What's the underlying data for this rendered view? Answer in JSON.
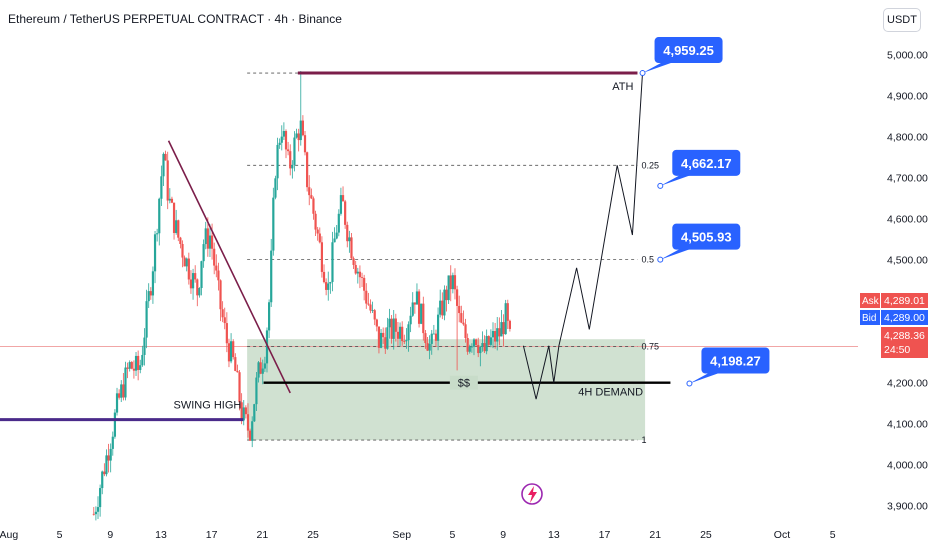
{
  "header": {
    "title": "Ethereum / TetherUS PERPETUAL CONTRACT · 4h · Binance",
    "currency": "USDT"
  },
  "colors": {
    "up": "#26a69a",
    "down": "#ef5350",
    "accent": "#2962ff",
    "ath_line": "#7b1e4a",
    "swing_line": "#4a2a8a",
    "demand_zone": "#c8dcc9"
  },
  "chart_data": {
    "type": "candlestick",
    "title": "",
    "y_ticks": [
      "5,000.00",
      "4,900.00",
      "4,800.00",
      "4,700.00",
      "4,600.00",
      "4,500.00",
      "4,400.00",
      "4,300.00",
      "4,200.00",
      "4,100.00",
      "4,000.00",
      "3,900.00"
    ],
    "y_tick_values": [
      5000,
      4900,
      4800,
      4700,
      4600,
      4500,
      4400,
      4300,
      4200,
      4100,
      4000,
      3900
    ],
    "ylim": [
      3870,
      5060
    ],
    "x_ticks": [
      {
        "label": "Aug",
        "day": 1
      },
      {
        "label": "5",
        "day": 5
      },
      {
        "label": "9",
        "day": 9
      },
      {
        "label": "13",
        "day": 13
      },
      {
        "label": "17",
        "day": 17
      },
      {
        "label": "21",
        "day": 21
      },
      {
        "label": "25",
        "day": 25
      },
      {
        "label": "Sep",
        "day": 32
      },
      {
        "label": "5",
        "day": 36
      },
      {
        "label": "9",
        "day": 40
      },
      {
        "label": "13",
        "day": 44
      },
      {
        "label": "17",
        "day": 48
      },
      {
        "label": "21",
        "day": 52
      },
      {
        "label": "25",
        "day": 56
      },
      {
        "label": "Oct",
        "day": 62
      },
      {
        "label": "5",
        "day": 66
      }
    ],
    "day_range": [
      0.3,
      68
    ],
    "candle_path": [
      [
        7.7,
        3880
      ],
      [
        9.0,
        4060
      ],
      [
        9.6,
        4150
      ],
      [
        10.5,
        4240
      ],
      [
        11.3,
        4230
      ],
      [
        12.3,
        4470
      ],
      [
        13.2,
        4760
      ],
      [
        13.6,
        4650
      ],
      [
        14.3,
        4560
      ],
      [
        15.3,
        4470
      ],
      [
        15.9,
        4420
      ],
      [
        16.3,
        4540
      ],
      [
        16.9,
        4560
      ],
      [
        17.6,
        4400
      ],
      [
        18.2,
        4300
      ],
      [
        18.8,
        4240
      ],
      [
        19.4,
        4120
      ],
      [
        20.0,
        4080
      ],
      [
        20.6,
        4210
      ],
      [
        21.2,
        4280
      ],
      [
        21.6,
        4420
      ],
      [
        22.0,
        4720
      ],
      [
        22.5,
        4830
      ],
      [
        23.1,
        4720
      ],
      [
        23.6,
        4790
      ],
      [
        24.0,
        4830
      ],
      [
        24.5,
        4700
      ],
      [
        25.0,
        4620
      ],
      [
        25.6,
        4520
      ],
      [
        26.2,
        4430
      ],
      [
        26.8,
        4570
      ],
      [
        27.3,
        4640
      ],
      [
        27.8,
        4560
      ],
      [
        28.3,
        4500
      ],
      [
        28.9,
        4440
      ],
      [
        29.5,
        4380
      ],
      [
        30.2,
        4300
      ],
      [
        30.8,
        4320
      ],
      [
        31.5,
        4330
      ],
      [
        32.3,
        4330
      ],
      [
        33.0,
        4420
      ],
      [
        33.6,
        4350
      ],
      [
        34.3,
        4280
      ],
      [
        34.8,
        4340
      ],
      [
        35.4,
        4410
      ],
      [
        36.0,
        4450
      ],
      [
        36.6,
        4340
      ],
      [
        37.2,
        4300
      ],
      [
        37.8,
        4320
      ],
      [
        38.4,
        4270
      ],
      [
        39.0,
        4300
      ],
      [
        39.7,
        4320
      ],
      [
        40.2,
        4360
      ],
      [
        40.6,
        4290
      ]
    ],
    "candle_spikes": [
      {
        "day": 24.0,
        "high": 4960
      },
      {
        "day": 20.1,
        "low": 4060
      },
      {
        "day": 36.4,
        "low": 4230
      },
      {
        "day": 38.2,
        "low": 4240
      }
    ],
    "fib_levels": [
      {
        "label": "0.25",
        "value": 4730
      },
      {
        "label": "0.5",
        "value": 4500
      },
      {
        "label": "0.75",
        "value": 4288
      },
      {
        "label": "1",
        "value": 4060
      }
    ],
    "ath": {
      "label": "ATH",
      "value": 4955,
      "from_day": 23.8,
      "to_day": 50.6
    },
    "ath_dashed_from_day": 19.8,
    "fib_dashed_from_day": 19.8,
    "fib_dashed_to_day": 50.6,
    "demand_zone": {
      "label": "4H DEMAND",
      "top": 4306,
      "bottom": 4060,
      "from_day": 19.8,
      "to_day": 51.2
    },
    "demand_line": {
      "value": 4200,
      "from_day": 21.1,
      "to_day": 53.2
    },
    "liquidity_label": "$$",
    "swing_high": {
      "label": "SWING HIGH",
      "value": 4110,
      "from_day": 0.3,
      "to_day": 19.5
    },
    "trendline": {
      "from": [
        13.6,
        4790
      ],
      "to": [
        23.2,
        4175
      ]
    },
    "projection_path": [
      [
        41.6,
        4290
      ],
      [
        42.6,
        4160
      ],
      [
        43.6,
        4290
      ],
      [
        44.0,
        4200
      ],
      [
        44.4,
        4290
      ],
      [
        45.8,
        4480
      ],
      [
        46.8,
        4330
      ],
      [
        49.0,
        4730
      ],
      [
        50.2,
        4560
      ],
      [
        51.0,
        4955
      ]
    ],
    "callouts": [
      {
        "label": "4,959.25",
        "anchor_day": 51.0,
        "anchor_value": 4955
      },
      {
        "label": "4,662.17",
        "anchor_day": 52.4,
        "anchor_value": 4680
      },
      {
        "label": "4,505.93",
        "anchor_day": 52.4,
        "anchor_value": 4500
      },
      {
        "label": "4,198.27",
        "anchor_day": 54.7,
        "anchor_value": 4198
      }
    ],
    "price_line_value": 4288.36,
    "price_tags": {
      "ask_label": "Ask",
      "ask": "4,289.01",
      "bid_label": "Bid",
      "bid": "4,289.00",
      "last": "4,288.36",
      "countdown": "24:50"
    },
    "grid": false
  }
}
